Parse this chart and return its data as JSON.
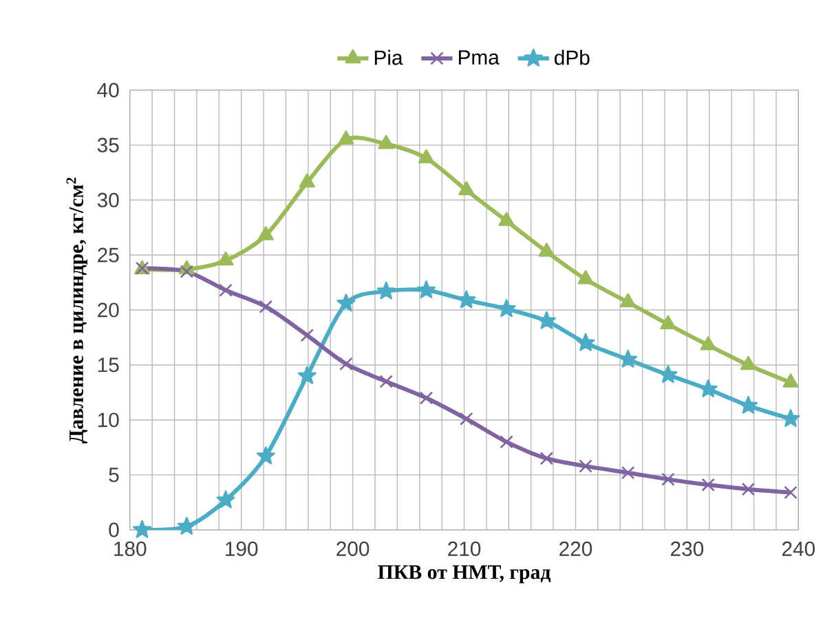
{
  "chart_data": {
    "type": "line",
    "xlabel": "ПКВ от НМТ, град",
    "ylabel": "Давление в цилиндре, кг/см$^{2}$",
    "xlim": [
      180,
      240
    ],
    "ylim": [
      0,
      40
    ],
    "xticks": [
      180,
      {
        "value": 182,
        "label": null
      },
      {
        "value": 184,
        "label": null
      },
      {
        "value": 186,
        "label": null
      },
      {
        "value": 188,
        "label": null
      },
      190,
      {
        "value": 192,
        "label": null
      },
      {
        "value": 194,
        "label": null
      },
      {
        "value": 196,
        "label": null
      },
      {
        "value": 198,
        "label": null
      },
      200,
      {
        "value": 202,
        "label": null
      },
      {
        "value": 204,
        "label": null
      },
      {
        "value": 206,
        "label": null
      },
      {
        "value": 208,
        "label": null
      },
      210,
      {
        "value": 212,
        "label": null
      },
      {
        "value": 214,
        "label": null
      },
      {
        "value": 216,
        "label": null
      },
      {
        "value": 218,
        "label": null
      },
      220,
      {
        "value": 222,
        "label": null
      },
      {
        "value": 224,
        "label": null
      },
      {
        "value": 226,
        "label": null
      },
      {
        "value": 228,
        "label": null
      },
      230,
      {
        "value": 232,
        "label": null
      },
      {
        "value": 234,
        "label": null
      },
      {
        "value": 236,
        "label": null
      },
      {
        "value": 238,
        "label": null
      },
      240
    ],
    "yticks": [
      0,
      5,
      10,
      15,
      20,
      25,
      30,
      35,
      40
    ],
    "grid": true,
    "legend": "top",
    "x": [
      181.1,
      185.1,
      188.6,
      192.2,
      195.9,
      199.4,
      203,
      206.6,
      210.2,
      213.8,
      217.4,
      220.9,
      224.7,
      228.3,
      231.9,
      235.5,
      239.3
    ],
    "series": [
      {
        "name": "Pia",
        "color": "#9bbb59",
        "marker": "triangle",
        "values": [
          23.7,
          23.7,
          24.5,
          26.8,
          31.6,
          35.5,
          35.1,
          33.8,
          30.9,
          28.1,
          25.3,
          22.8,
          20.7,
          18.7,
          16.8,
          15.0,
          13.4
        ]
      },
      {
        "name": "Pma",
        "color": "#8064a2",
        "marker": "cross",
        "values": [
          23.8,
          23.5,
          21.8,
          20.3,
          17.7,
          15.1,
          13.5,
          12.0,
          10.1,
          8.0,
          6.5,
          5.8,
          5.2,
          4.6,
          4.1,
          3.7,
          3.4
        ]
      },
      {
        "name": "dPb",
        "color": "#4bacc6",
        "marker": "star",
        "values": [
          0,
          0.3,
          2.7,
          6.7,
          14.0,
          20.6,
          21.7,
          21.8,
          20.9,
          20.1,
          19.0,
          17.0,
          15.5,
          14.1,
          12.8,
          11.3,
          10.1
        ]
      }
    ]
  }
}
